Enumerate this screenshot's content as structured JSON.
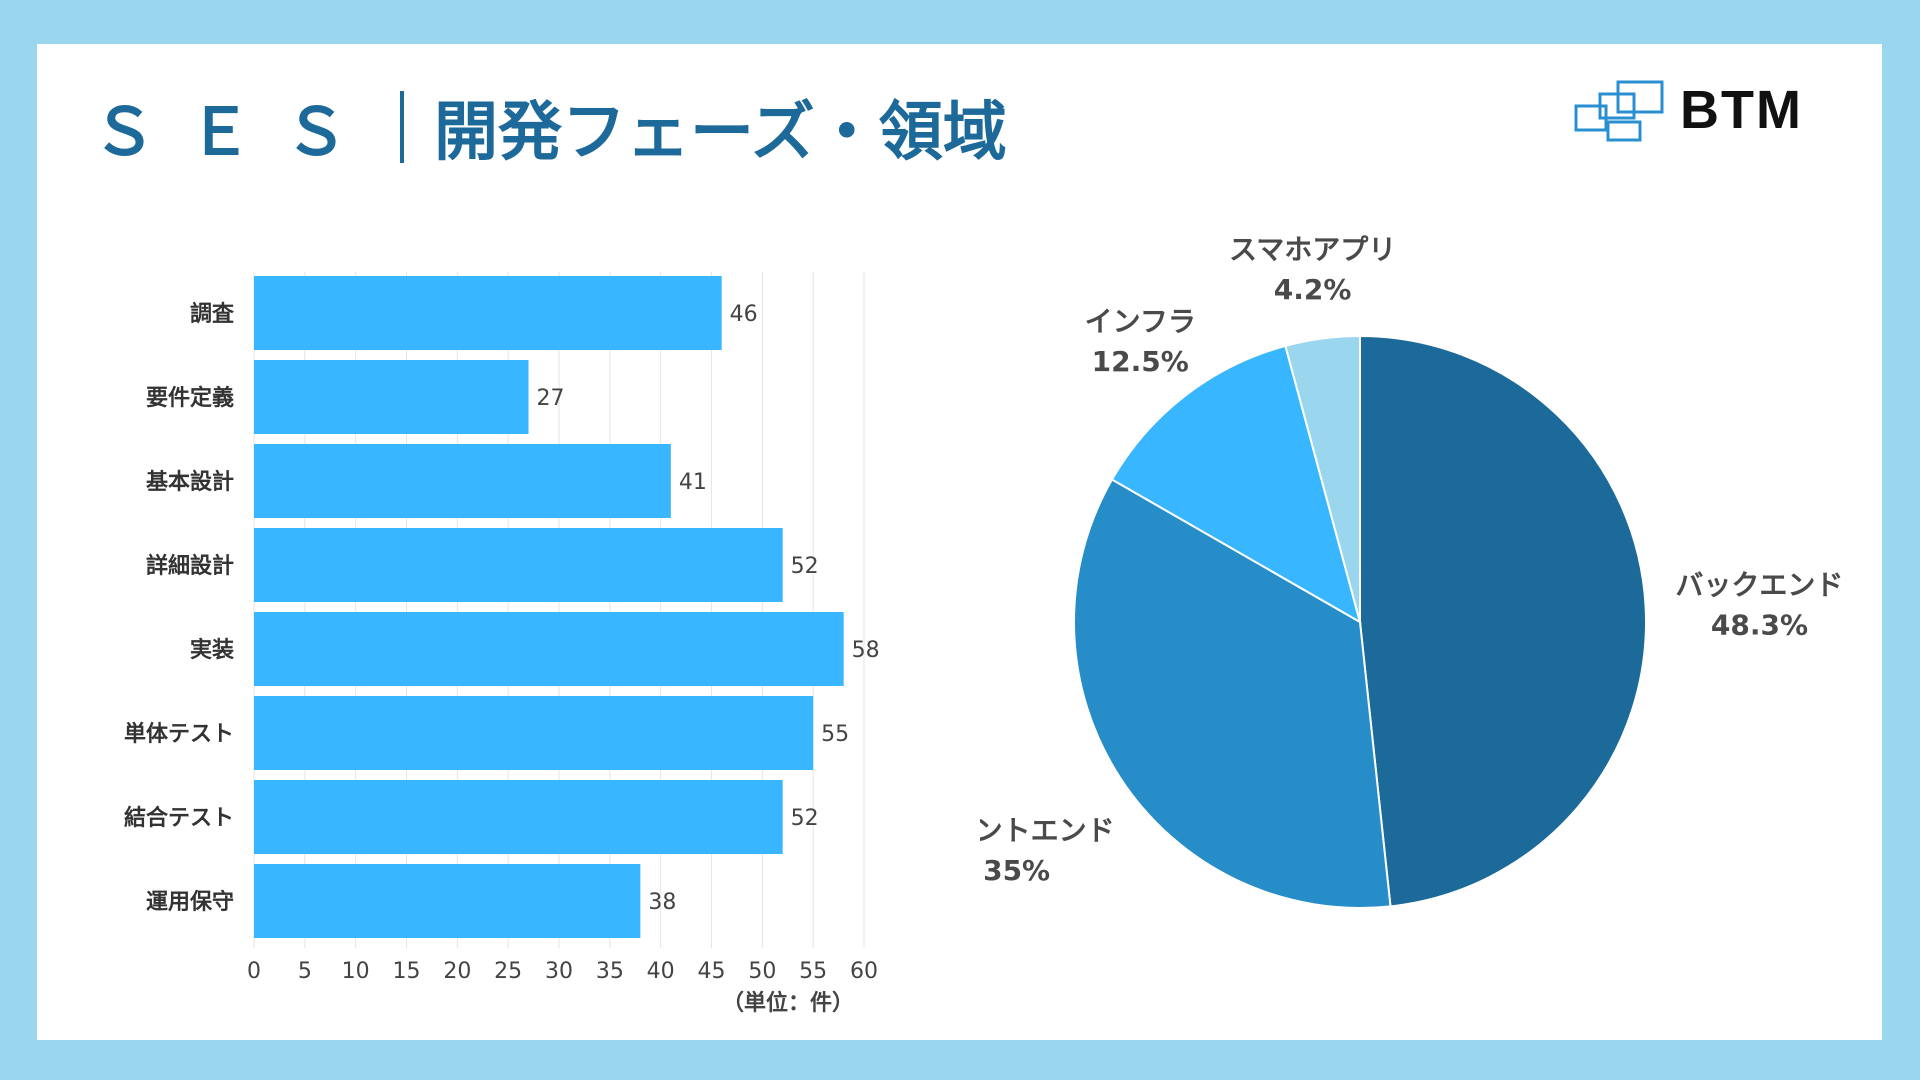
{
  "header": {
    "title_prefix": "ＳＥＳ",
    "title_main": "開発フェーズ・領域",
    "brand": "BTM"
  },
  "colors": {
    "background": "#9ad6ee",
    "title": "#1d6a9a",
    "bar": "#38b6ff"
  },
  "chart_data": [
    {
      "type": "bar",
      "orientation": "horizontal",
      "categories": [
        "調査",
        "要件定義",
        "基本設計",
        "詳細設計",
        "実装",
        "単体テスト",
        "結合テスト",
        "運用保守"
      ],
      "values": [
        46,
        27,
        41,
        52,
        58,
        55,
        52,
        38
      ],
      "xlim": [
        0,
        60
      ],
      "xticks": [
        "0",
        "5",
        "10",
        "15",
        "20",
        "25",
        "30",
        "35",
        "40",
        "45",
        "50",
        "55",
        "60"
      ],
      "unit_label": "（単位：件）",
      "grid": true,
      "color": "#38b6ff"
    },
    {
      "type": "pie",
      "labels": [
        "バックエンド",
        "フロントエンド",
        "インフラ",
        "スマホアプリ"
      ],
      "values": [
        48.3,
        35,
        12.5,
        4.2
      ],
      "value_labels": [
        "48.3%",
        "35%",
        "12.5%",
        "4.2%"
      ],
      "colors": [
        "#1b6a9a",
        "#268dc9",
        "#38b6ff",
        "#9ad6ee"
      ]
    }
  ]
}
